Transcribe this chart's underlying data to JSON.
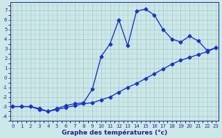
{
  "title": "Graphe des températures (°c)",
  "upper_x": [
    0,
    1,
    2,
    3,
    4,
    5,
    6,
    7,
    8,
    9,
    10,
    11,
    12,
    13,
    14,
    15,
    16,
    17,
    18,
    19,
    20,
    21,
    22,
    23
  ],
  "upper_y": [
    -3.0,
    -3.0,
    -3.0,
    -3.3,
    -3.5,
    -3.2,
    -2.9,
    -2.7,
    -2.6,
    -1.2,
    2.2,
    3.5,
    6.0,
    3.3,
    6.9,
    7.1,
    6.5,
    5.0,
    4.0,
    3.7,
    4.3,
    3.8,
    2.8,
    3.1
  ],
  "lower_x": [
    0,
    1,
    2,
    3,
    4,
    5,
    6,
    7,
    8,
    9,
    10,
    11,
    12,
    13,
    14,
    15,
    16,
    17,
    18,
    19,
    20,
    21,
    22,
    23
  ],
  "lower_y": [
    -3.0,
    -3.0,
    -3.0,
    -3.2,
    -3.5,
    -3.3,
    -3.1,
    -2.9,
    -2.7,
    -2.6,
    -2.3,
    -2.0,
    -1.5,
    -1.0,
    -0.6,
    -0.1,
    0.4,
    0.9,
    1.4,
    1.8,
    2.1,
    2.4,
    2.7,
    3.1
  ],
  "line_color": "#1a33cc",
  "bg_color": "#cce8e8",
  "grid_color": "#aacaca",
  "axis_color": "#222288",
  "ylim": [
    -4.5,
    7.8
  ],
  "xlim": [
    -0.3,
    23.3
  ],
  "yticks": [
    -4,
    -3,
    -2,
    -1,
    0,
    1,
    2,
    3,
    4,
    5,
    6,
    7
  ],
  "xticks": [
    0,
    1,
    2,
    3,
    4,
    5,
    6,
    7,
    8,
    9,
    10,
    11,
    12,
    13,
    14,
    15,
    16,
    17,
    18,
    19,
    20,
    21,
    22,
    23
  ],
  "marker": "D",
  "marker_size": 2.5,
  "linewidth": 1.0,
  "tick_fontsize": 5.0,
  "label_fontsize": 6.5
}
